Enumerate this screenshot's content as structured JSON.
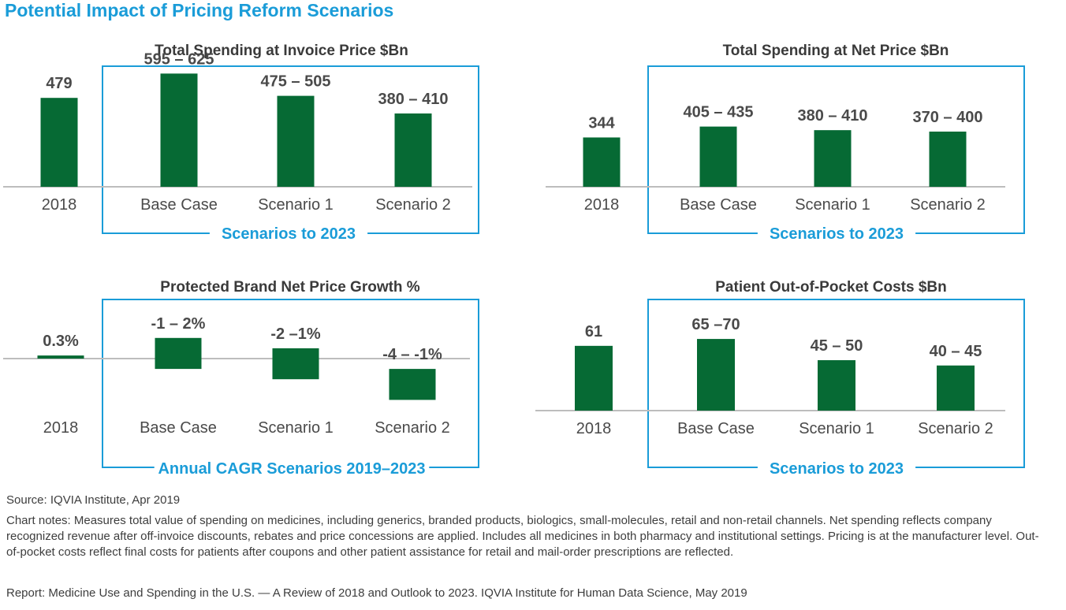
{
  "page_title": "Potential Impact of Pricing Reform Scenarios",
  "colors": {
    "bar": "#066a34",
    "accent": "#1a9cd8",
    "axis": "#bdbdbd",
    "text": "#4a4a4a"
  },
  "chart_data": [
    {
      "type": "bar",
      "title": "Total Spending at Invoice Price $Bn",
      "categories": [
        "2018",
        "Base Case",
        "Scenario 1",
        "Scenario 2"
      ],
      "values": [
        479,
        610,
        490,
        395
      ],
      "value_labels": [
        "479",
        "595 – 625",
        "475 – 505",
        "380 – 410"
      ],
      "frame_label": "Scenarios to 2023",
      "ylim": [
        0,
        650
      ]
    },
    {
      "type": "bar",
      "title": "Total Spending at Net Price $Bn",
      "categories": [
        "2018",
        "Base Case",
        "Scenario 1",
        "Scenario 2"
      ],
      "values": [
        344,
        420,
        395,
        385
      ],
      "value_labels": [
        "344",
        "405 – 435",
        "380 – 410",
        "370 – 400"
      ],
      "frame_label": "Scenarios to 2023",
      "ylim": [
        0,
        650
      ]
    },
    {
      "type": "bar",
      "title": "Protected Brand Net Price Growth %",
      "categories": [
        "2018",
        "Base Case",
        "Scenario 1",
        "Scenario 2"
      ],
      "ranges": [
        [
          0,
          0.3
        ],
        [
          -1,
          2
        ],
        [
          -2,
          1
        ],
        [
          -4,
          -1
        ]
      ],
      "value_labels": [
        "0.3%",
        "-1 – 2%",
        "-2 –1%",
        "-4 – -1%"
      ],
      "frame_label": "Annual CAGR Scenarios 2019–2023",
      "ylim": [
        -4,
        2
      ]
    },
    {
      "type": "bar",
      "title": "Patient Out-of-Pocket Costs $Bn",
      "categories": [
        "2018",
        "Base Case",
        "Scenario 1",
        "Scenario 2"
      ],
      "values": [
        61,
        67.5,
        47.5,
        42.5
      ],
      "value_labels": [
        "61",
        "65 –70",
        "45 – 50",
        "40 – 45"
      ],
      "frame_label": "Scenarios to 2023",
      "ylim": [
        0,
        70
      ]
    }
  ],
  "notes": {
    "source": "Source: IQVIA Institute, Apr 2019",
    "chart_notes": "Chart notes: Measures total value of spending on medicines, including generics, branded products, biologics, small-molecules, retail and non-retail channels. Net spending reflects company recognized revenue after off-invoice discounts, rebates and price concessions are applied. Includes all medicines in both pharmacy and institutional settings. Pricing is at the manufacturer level. Out-of-pocket costs reflect final costs for patients after coupons and other patient assistance for retail and mail-order prescriptions are reflected.",
    "report": "Report: Medicine Use and Spending in the U.S. — A Review of 2018 and Outlook to 2023. IQVIA Institute for Human Data Science, May 2019"
  }
}
